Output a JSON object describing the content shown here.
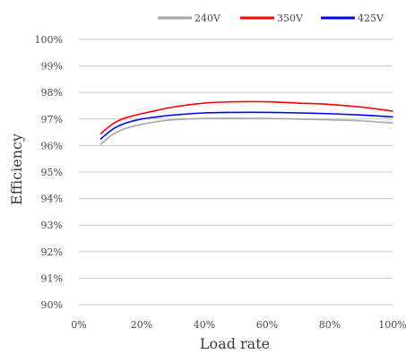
{
  "chart_data": {
    "type": "line",
    "title": "",
    "xlabel": "Load rate",
    "ylabel": "Efficiency",
    "xlim": [
      0,
      100
    ],
    "ylim": [
      90,
      100
    ],
    "x_ticks": [
      0,
      20,
      40,
      60,
      80,
      100
    ],
    "x_tick_labels": [
      "0%",
      "20%",
      "40%",
      "60%",
      "80%",
      "100%"
    ],
    "y_ticks": [
      90,
      91,
      92,
      93,
      94,
      95,
      96,
      97,
      98,
      99,
      100
    ],
    "y_tick_labels": [
      "90%",
      "91%",
      "92%",
      "93%",
      "94%",
      "95%",
      "96%",
      "97%",
      "98%",
      "99%",
      "100%"
    ],
    "grid": true,
    "legend_position": "top-right",
    "series": [
      {
        "name": "240V",
        "color": "#a6a6a6",
        "x": [
          7,
          10,
          12,
          15,
          20,
          25,
          30,
          40,
          50,
          60,
          70,
          80,
          90,
          100
        ],
        "y": [
          96.05,
          96.35,
          96.5,
          96.65,
          96.8,
          96.9,
          96.97,
          97.02,
          97.03,
          97.02,
          97.0,
          96.97,
          96.93,
          96.85
        ]
      },
      {
        "name": "350V",
        "color": "#ff0000",
        "x": [
          7,
          10,
          12,
          15,
          20,
          25,
          30,
          40,
          50,
          60,
          70,
          80,
          90,
          100
        ],
        "y": [
          96.45,
          96.75,
          96.9,
          97.05,
          97.2,
          97.33,
          97.45,
          97.6,
          97.65,
          97.65,
          97.6,
          97.55,
          97.45,
          97.3
        ]
      },
      {
        "name": "425V",
        "color": "#0000ff",
        "x": [
          7,
          10,
          12,
          15,
          20,
          25,
          30,
          40,
          50,
          60,
          70,
          80,
          90,
          100
        ],
        "y": [
          96.25,
          96.55,
          96.7,
          96.85,
          97.0,
          97.08,
          97.15,
          97.23,
          97.25,
          97.25,
          97.23,
          97.2,
          97.15,
          97.08
        ]
      }
    ]
  }
}
